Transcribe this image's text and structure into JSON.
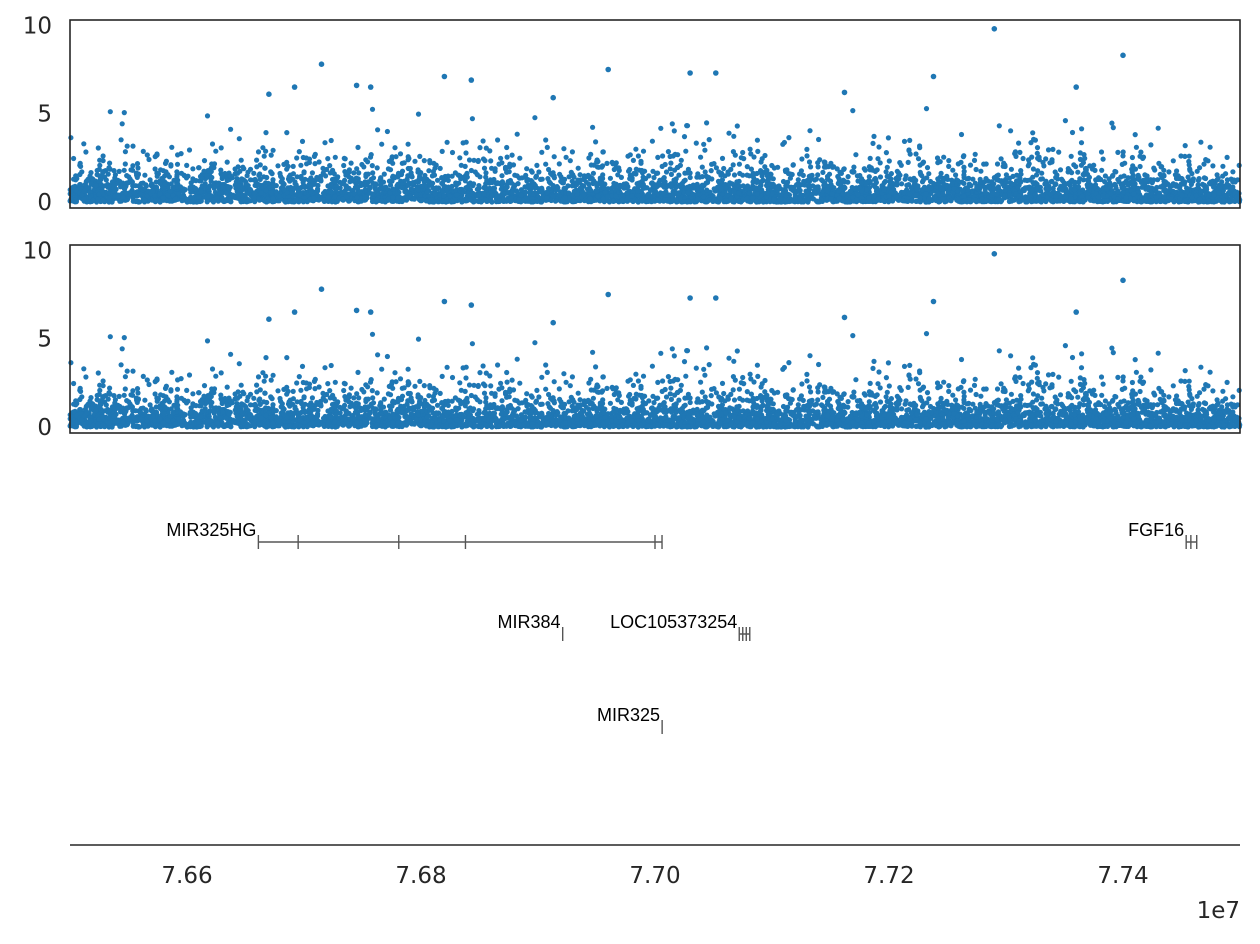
{
  "chart_data": {
    "type": "scatter",
    "colors": {
      "points": "#1f77b4",
      "axis": "#262626",
      "gene": "#808080"
    },
    "xlim": [
      76500000,
      77500000
    ],
    "x_scale_note": "1e7",
    "x_ticks": [
      76600000,
      76800000,
      77000000,
      77200000,
      77400000
    ],
    "x_tick_labels": [
      "7.66",
      "7.68",
      "7.70",
      "7.72",
      "7.74"
    ],
    "panels": [
      {
        "name": "",
        "ylim": [
          0,
          10.3
        ],
        "y_ticks": [
          0,
          5,
          10
        ],
        "y_tick_labels": [
          "0",
          "5",
          "10"
        ],
        "series": "dense scatter of ~ -log10(p) values across region",
        "notable_points": [
          {
            "x": 77290000,
            "y": 9.8
          },
          {
            "x": 77400000,
            "y": 8.3
          },
          {
            "x": 76715000,
            "y": 7.8
          },
          {
            "x": 76960000,
            "y": 7.5
          },
          {
            "x": 77030000,
            "y": 7.3
          },
          {
            "x": 77052000,
            "y": 7.3
          },
          {
            "x": 76820000,
            "y": 7.1
          },
          {
            "x": 76843000,
            "y": 6.9
          },
          {
            "x": 77238000,
            "y": 7.1
          },
          {
            "x": 76757000,
            "y": 6.5
          },
          {
            "x": 76692000,
            "y": 6.5
          },
          {
            "x": 76670000,
            "y": 6.1
          },
          {
            "x": 76913000,
            "y": 5.9
          },
          {
            "x": 77162000,
            "y": 6.2
          },
          {
            "x": 77360000,
            "y": 6.5
          },
          {
            "x": 76745000,
            "y": 6.6
          }
        ]
      },
      {
        "name": "",
        "ylim": [
          0,
          10.3
        ],
        "y_ticks": [
          0,
          5,
          10
        ],
        "y_tick_labels": [
          "0",
          "5",
          "10"
        ],
        "series": "dense scatter of ~ -log10(p) values across region (same data)",
        "notable_points": [
          {
            "x": 77290000,
            "y": 9.8
          },
          {
            "x": 77400000,
            "y": 8.3
          },
          {
            "x": 76715000,
            "y": 7.8
          },
          {
            "x": 76960000,
            "y": 7.5
          },
          {
            "x": 77030000,
            "y": 7.3
          },
          {
            "x": 77052000,
            "y": 7.3
          },
          {
            "x": 76820000,
            "y": 7.1
          },
          {
            "x": 76843000,
            "y": 6.9
          },
          {
            "x": 77238000,
            "y": 7.1
          },
          {
            "x": 76757000,
            "y": 6.5
          },
          {
            "x": 76692000,
            "y": 6.5
          },
          {
            "x": 76670000,
            "y": 6.1
          },
          {
            "x": 76913000,
            "y": 5.9
          },
          {
            "x": 77162000,
            "y": 6.2
          },
          {
            "x": 77360000,
            "y": 6.5
          },
          {
            "x": 76745000,
            "y": 6.6
          }
        ]
      }
    ],
    "genes": [
      {
        "name": "MIR325HG",
        "row": 0,
        "start": 76661000,
        "end": 77006000,
        "exons": [
          76661000,
          76695000,
          76781000,
          76838000,
          77000000,
          77006000
        ]
      },
      {
        "name": "FGF16",
        "row": 0,
        "start": 77454000,
        "end": 77463000,
        "exons": [
          77454000,
          77458000,
          77463000
        ]
      },
      {
        "name": "MIR384",
        "row": 1,
        "start": 76921000,
        "end": 76921200,
        "exons": [
          76921100
        ]
      },
      {
        "name": "LOC105373254",
        "row": 1,
        "start": 77072000,
        "end": 77081000,
        "exons": [
          77072000,
          77075000,
          77078000,
          77081000
        ]
      },
      {
        "name": "MIR325",
        "row": 2,
        "start": 77006000,
        "end": 77006200,
        "exons": [
          77006100
        ]
      }
    ]
  }
}
